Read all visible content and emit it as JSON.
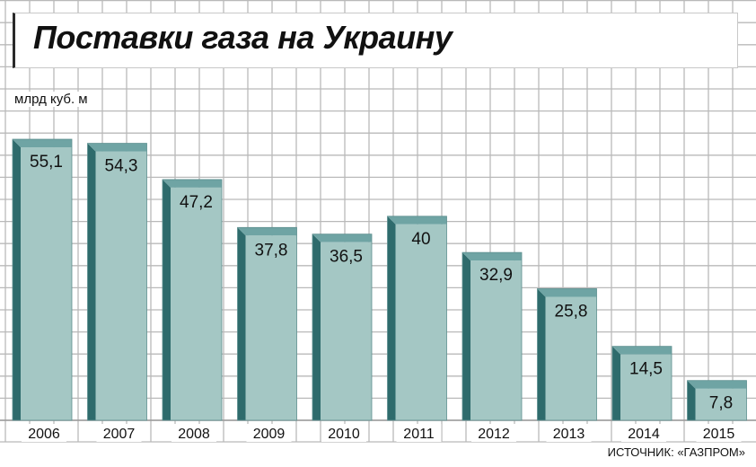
{
  "chart_data": {
    "type": "bar",
    "title": "Поставки газа на Украину",
    "ylabel": "млрд куб. м",
    "xlabel": "",
    "categories": [
      "2006",
      "2007",
      "2008",
      "2009",
      "2010",
      "2011",
      "2012",
      "2013",
      "2014",
      "2015"
    ],
    "values": [
      55.1,
      54.3,
      47.2,
      37.8,
      36.5,
      40,
      32.9,
      25.8,
      14.5,
      7.8
    ],
    "value_labels": [
      "55,1",
      "54,3",
      "47,2",
      "37,8",
      "36,5",
      "40",
      "32,9",
      "25,8",
      "14,5",
      "7,8"
    ],
    "ylim": [
      0,
      60
    ],
    "grid": true,
    "legend": "none",
    "source": "ИСТОЧНИК: «ГАЗПРОМ»",
    "colors": {
      "bar_face": "#a4c7c4",
      "bar_side": "#2e6b6c",
      "bar_top": "#6fa4a4",
      "grid_line": "#b9b9b9",
      "text": "#111111"
    }
  }
}
